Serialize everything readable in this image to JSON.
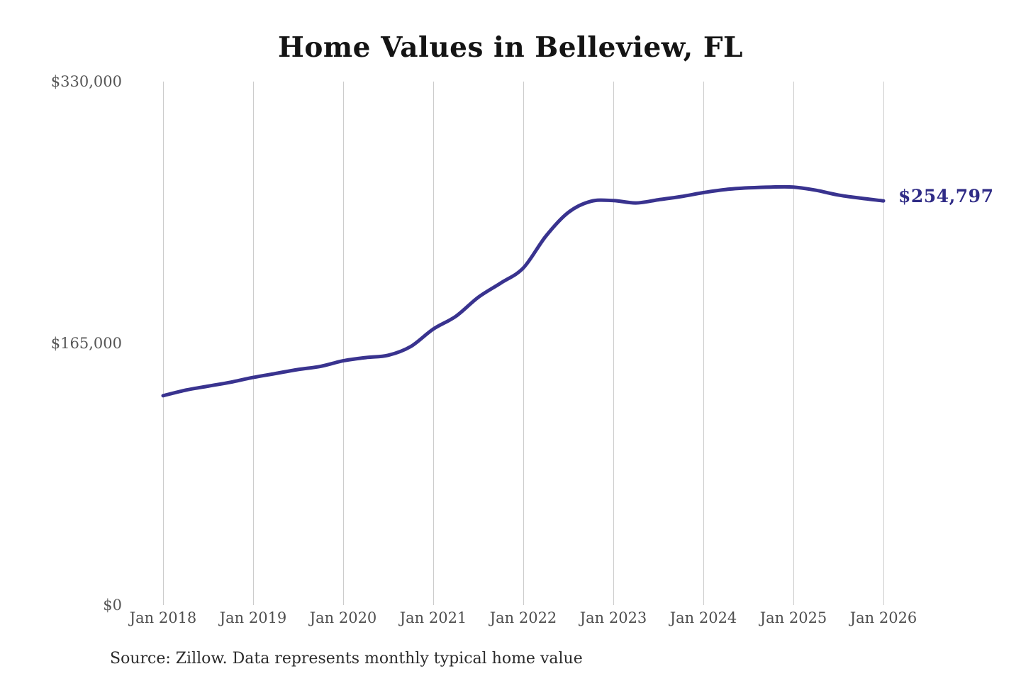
{
  "chart": {
    "title": "Home Values in Belleview, FL",
    "end_label": "$254,797",
    "source": "Source: Zillow. Data represents monthly typical home value",
    "colors": {
      "line": "#39338f",
      "end_label_text": "#2f2b86",
      "gridline": "#cccccc",
      "axis_text": "#4f4f4f",
      "y_axis_text": "#565656",
      "title_text": "#141414",
      "source_text": "#2b2b2b",
      "background": "#ffffff"
    }
  },
  "chart_data": {
    "type": "line",
    "title": "Home Values in Belleview, FL",
    "xlabel": "",
    "ylabel": "",
    "x_ticks": [
      "Jan 2018",
      "Jan 2019",
      "Jan 2020",
      "Jan 2021",
      "Jan 2022",
      "Jan 2023",
      "Jan 2024",
      "Jan 2025",
      "Jan 2026"
    ],
    "y_ticks": [
      {
        "label": "$0",
        "value": 0
      },
      {
        "label": "$165,000",
        "value": 165000
      },
      {
        "label": "$330,000",
        "value": 330000
      }
    ],
    "ylim": [
      0,
      330000
    ],
    "grid": "vertical-only",
    "legend": "none",
    "series": [
      {
        "name": "Monthly typical home value",
        "points": [
          {
            "date": "Jan 2018",
            "value": 132000
          },
          {
            "date": "Apr 2018",
            "value": 135500
          },
          {
            "date": "Jul 2018",
            "value": 138000
          },
          {
            "date": "Oct 2018",
            "value": 140500
          },
          {
            "date": "Jan 2019",
            "value": 143500
          },
          {
            "date": "Apr 2019",
            "value": 146000
          },
          {
            "date": "Jul 2019",
            "value": 148500
          },
          {
            "date": "Oct 2019",
            "value": 150500
          },
          {
            "date": "Jan 2020",
            "value": 154000
          },
          {
            "date": "Apr 2020",
            "value": 156000
          },
          {
            "date": "Jul 2020",
            "value": 157500
          },
          {
            "date": "Oct 2020",
            "value": 163000
          },
          {
            "date": "Jan 2021",
            "value": 174000
          },
          {
            "date": "Apr 2021",
            "value": 182000
          },
          {
            "date": "Jul 2021",
            "value": 194000
          },
          {
            "date": "Oct 2021",
            "value": 203000
          },
          {
            "date": "Jan 2022",
            "value": 212500
          },
          {
            "date": "Apr 2022",
            "value": 232500
          },
          {
            "date": "Jul 2022",
            "value": 247500
          },
          {
            "date": "Oct 2022",
            "value": 254500
          },
          {
            "date": "Jan 2023",
            "value": 255000
          },
          {
            "date": "Apr 2023",
            "value": 253500
          },
          {
            "date": "Jul 2023",
            "value": 255500
          },
          {
            "date": "Oct 2023",
            "value": 257500
          },
          {
            "date": "Jan 2024",
            "value": 260000
          },
          {
            "date": "Apr 2024",
            "value": 262000
          },
          {
            "date": "Jul 2024",
            "value": 263000
          },
          {
            "date": "Oct 2024",
            "value": 263500
          },
          {
            "date": "Jan 2025",
            "value": 263500
          },
          {
            "date": "Apr 2025",
            "value": 261500
          },
          {
            "date": "Jul 2025",
            "value": 258500
          },
          {
            "date": "Oct 2025",
            "value": 256500
          },
          {
            "date": "Jan 2026",
            "value": 254797
          }
        ]
      }
    ],
    "end_annotation": {
      "text": "$254,797",
      "value": 254797,
      "date": "Jan 2026"
    }
  }
}
